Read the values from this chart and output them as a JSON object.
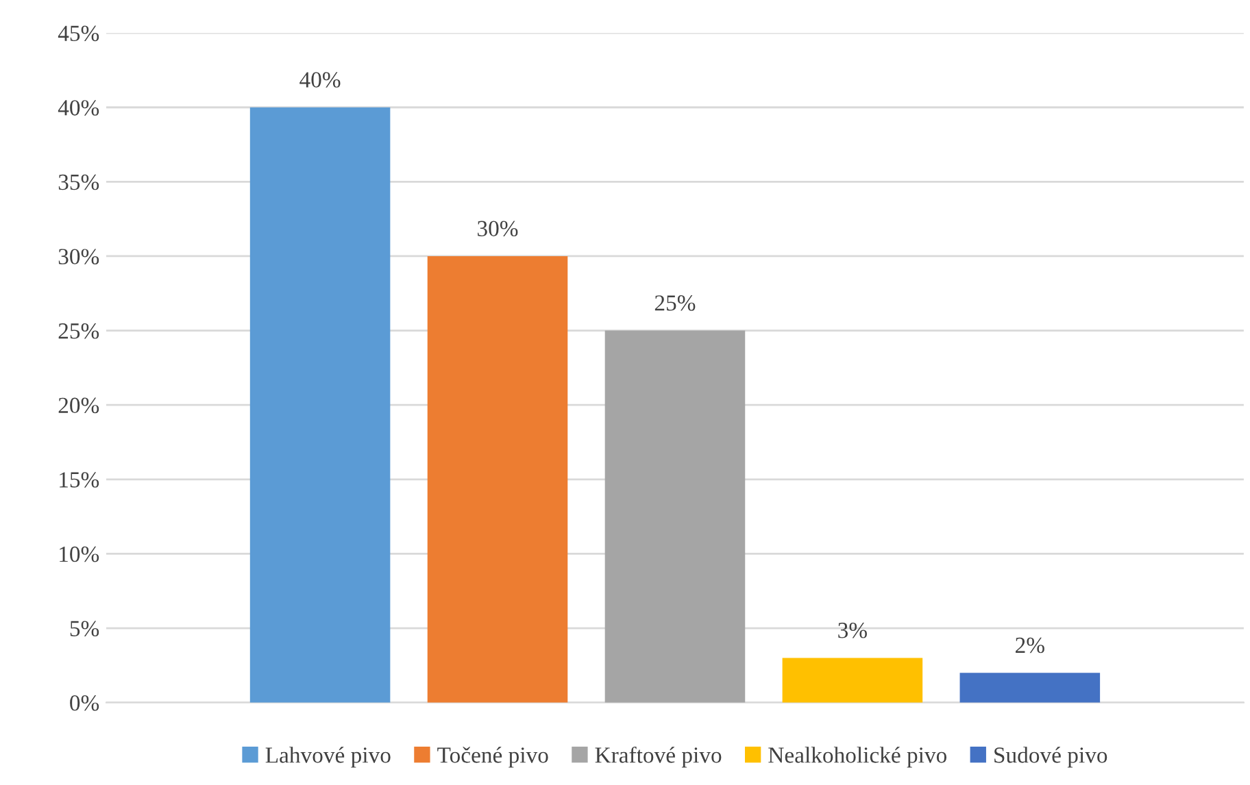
{
  "chart_data": {
    "type": "bar",
    "categories": [
      null
    ],
    "series": [
      {
        "name": "Lahvové pivo",
        "color": "#5b9bd5",
        "values": [
          40
        ],
        "value_labels": [
          "40%"
        ]
      },
      {
        "name": "Točené pivo",
        "color": "#ed7d31",
        "values": [
          30
        ],
        "value_labels": [
          "30%"
        ]
      },
      {
        "name": "Kraftové pivo",
        "color": "#a5a5a5",
        "values": [
          25
        ],
        "value_labels": [
          "25%"
        ]
      },
      {
        "name": "Nealkoholické pivo",
        "color": "#ffc000",
        "values": [
          3
        ],
        "value_labels": [
          "3%"
        ]
      },
      {
        "name": "Sudové pivo",
        "color": "#4472c4",
        "values": [
          2
        ],
        "value_labels": [
          "2%"
        ]
      }
    ],
    "ylim": [
      0,
      45
    ],
    "yticks": [
      {
        "value": 0,
        "label": "0%"
      },
      {
        "value": 5,
        "label": "5%"
      },
      {
        "value": 10,
        "label": "10%"
      },
      {
        "value": 15,
        "label": "15%"
      },
      {
        "value": 20,
        "label": "20%"
      },
      {
        "value": 25,
        "label": "25%"
      },
      {
        "value": 30,
        "label": "30%"
      },
      {
        "value": 35,
        "label": "35%"
      },
      {
        "value": 40,
        "label": "40%"
      },
      {
        "value": 45,
        "label": "45%"
      }
    ],
    "grid": "y",
    "legend": "bottom"
  }
}
